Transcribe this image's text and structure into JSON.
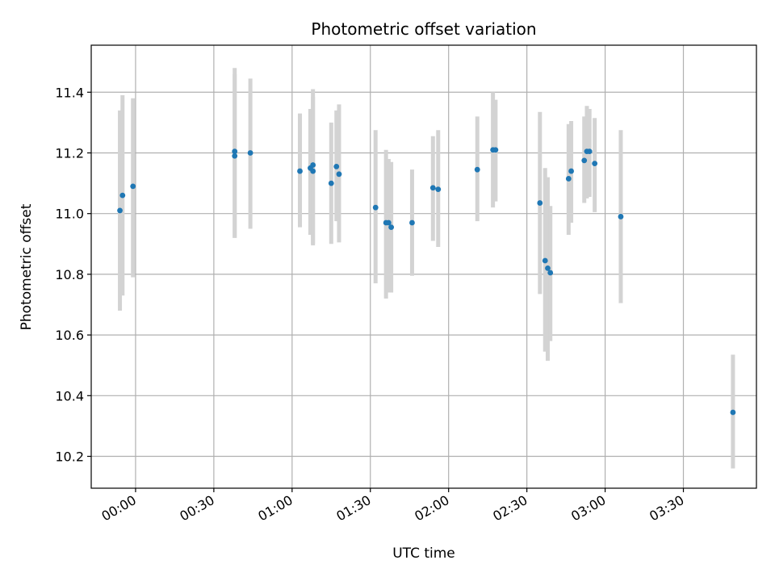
{
  "chart_data": {
    "type": "scatter",
    "title": "Photometric offset variation",
    "xlabel": "UTC time",
    "ylabel": "Photometric offset",
    "x_tick_labels": [
      "00:00",
      "00:30",
      "01:00",
      "01:30",
      "02:00",
      "02:30",
      "03:00",
      "03:30"
    ],
    "y_tick_labels": [
      "10.2",
      "10.4",
      "10.6",
      "10.8",
      "11.0",
      "11.2",
      "11.4"
    ],
    "xlim": [
      "23:43",
      "03:58"
    ],
    "ylim": [
      10.095,
      11.555
    ],
    "grid": true,
    "colors": {
      "point": "#1f77b4",
      "errorbar": "#d3d3d3",
      "grid": "#b0b0b0"
    },
    "points": [
      {
        "t": "23:54",
        "y": 11.01,
        "ymin": 10.68,
        "ymax": 11.34
      },
      {
        "t": "23:55",
        "y": 11.06,
        "ymin": 10.73,
        "ymax": 11.39
      },
      {
        "t": "23:59",
        "y": 11.09,
        "ymin": 10.79,
        "ymax": 11.38
      },
      {
        "t": "00:38",
        "y": 11.205,
        "ymin": 10.92,
        "ymax": 11.48
      },
      {
        "t": "00:38",
        "y": 11.19,
        "ymin": 10.92,
        "ymax": 11.46
      },
      {
        "t": "00:44",
        "y": 11.2,
        "ymin": 10.95,
        "ymax": 11.445
      },
      {
        "t": "01:03",
        "y": 11.14,
        "ymin": 10.955,
        "ymax": 11.33
      },
      {
        "t": "01:07",
        "y": 11.15,
        "ymin": 10.93,
        "ymax": 11.345
      },
      {
        "t": "01:08",
        "y": 11.16,
        "ymin": 10.9,
        "ymax": 11.41
      },
      {
        "t": "01:08",
        "y": 11.14,
        "ymin": 10.895,
        "ymax": 11.385
      },
      {
        "t": "01:15",
        "y": 11.1,
        "ymin": 10.9,
        "ymax": 11.3
      },
      {
        "t": "01:17",
        "y": 11.155,
        "ymin": 10.975,
        "ymax": 11.34
      },
      {
        "t": "01:18",
        "y": 11.13,
        "ymin": 10.905,
        "ymax": 11.36
      },
      {
        "t": "01:32",
        "y": 11.02,
        "ymin": 10.77,
        "ymax": 11.275
      },
      {
        "t": "01:36",
        "y": 10.97,
        "ymin": 10.72,
        "ymax": 11.21
      },
      {
        "t": "01:37",
        "y": 10.97,
        "ymin": 10.74,
        "ymax": 11.18
      },
      {
        "t": "01:38",
        "y": 10.955,
        "ymin": 10.74,
        "ymax": 11.17
      },
      {
        "t": "01:46",
        "y": 10.97,
        "ymin": 10.795,
        "ymax": 11.145
      },
      {
        "t": "01:54",
        "y": 11.085,
        "ymin": 10.91,
        "ymax": 11.255
      },
      {
        "t": "01:56",
        "y": 11.08,
        "ymin": 10.89,
        "ymax": 11.275
      },
      {
        "t": "02:11",
        "y": 11.145,
        "ymin": 10.975,
        "ymax": 11.32
      },
      {
        "t": "02:17",
        "y": 11.21,
        "ymin": 11.02,
        "ymax": 11.4
      },
      {
        "t": "02:18",
        "y": 11.21,
        "ymin": 11.04,
        "ymax": 11.375
      },
      {
        "t": "02:35",
        "y": 11.035,
        "ymin": 10.735,
        "ymax": 11.335
      },
      {
        "t": "02:37",
        "y": 10.845,
        "ymin": 10.545,
        "ymax": 11.15
      },
      {
        "t": "02:38",
        "y": 10.82,
        "ymin": 10.515,
        "ymax": 11.12
      },
      {
        "t": "02:39",
        "y": 10.805,
        "ymin": 10.58,
        "ymax": 11.025
      },
      {
        "t": "02:46",
        "y": 11.115,
        "ymin": 10.93,
        "ymax": 11.295
      },
      {
        "t": "02:47",
        "y": 11.14,
        "ymin": 10.97,
        "ymax": 11.305
      },
      {
        "t": "02:52",
        "y": 11.175,
        "ymin": 11.035,
        "ymax": 11.32
      },
      {
        "t": "02:53",
        "y": 11.205,
        "ymin": 11.05,
        "ymax": 11.355
      },
      {
        "t": "02:54",
        "y": 11.205,
        "ymin": 11.055,
        "ymax": 11.345
      },
      {
        "t": "02:56",
        "y": 11.165,
        "ymin": 11.005,
        "ymax": 11.315
      },
      {
        "t": "03:06",
        "y": 10.99,
        "ymin": 10.705,
        "ymax": 11.275
      },
      {
        "t": "03:49",
        "y": 10.345,
        "ymin": 10.16,
        "ymax": 10.535
      }
    ]
  }
}
